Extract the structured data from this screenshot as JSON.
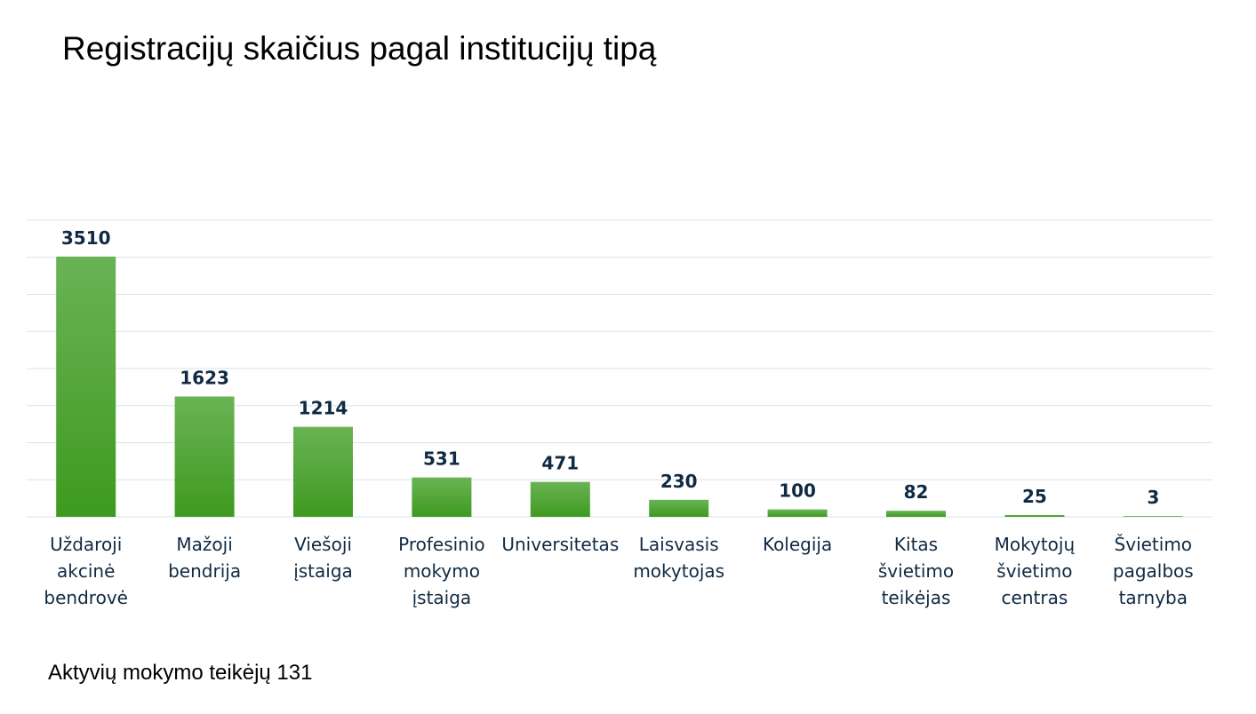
{
  "title": "Registracijų skaičius pagal institucijų tipą",
  "footer": "Aktyvių mokymo teikėjų 131",
  "colors": {
    "bar_top": "#6ab355",
    "bar_bottom": "#3e9a1f",
    "grid": "#d5e4e8",
    "value_label": "#102a43",
    "category_label": "#102a43"
  },
  "chart_data": {
    "type": "bar",
    "categories": [
      [
        "Uždaroji",
        "akcinė",
        "bendrovė"
      ],
      [
        "Mažoji",
        "bendrija"
      ],
      [
        "Viešoji",
        "įstaiga"
      ],
      [
        "Profesinio",
        "mokymo",
        "įstaiga"
      ],
      [
        "Universitetas"
      ],
      [
        "Laisvasis",
        "mokytojas"
      ],
      [
        "Kolegija"
      ],
      [
        "Kitas",
        "švietimo",
        "teikėjas"
      ],
      [
        "Mokytojų",
        "švietimo",
        "centras"
      ],
      [
        "Švietimo",
        "pagalbos",
        "tarnyba"
      ]
    ],
    "values": [
      3510,
      1623,
      1214,
      531,
      471,
      230,
      100,
      82,
      25,
      3
    ],
    "ylim": [
      0,
      4000
    ],
    "grid": true,
    "gridlines": [
      0,
      500,
      1000,
      1500,
      2000,
      2500,
      3000,
      3500,
      4000
    ],
    "data_labels": true,
    "legend": false
  }
}
